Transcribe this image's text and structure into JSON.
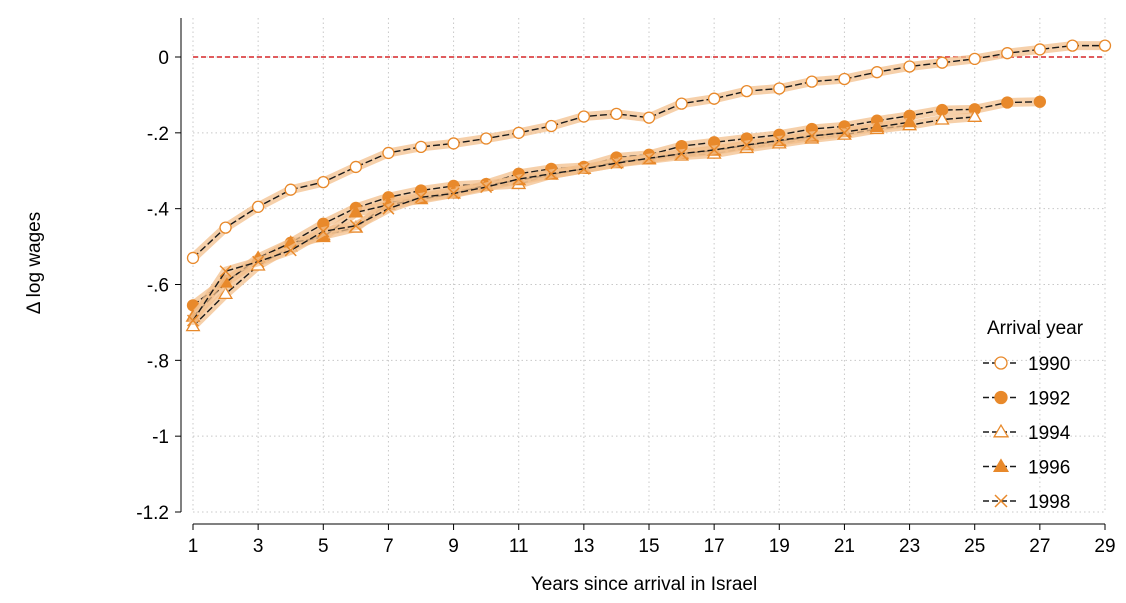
{
  "chart_data": {
    "type": "line",
    "title": "",
    "xlabel": "Years since arrival in Israel",
    "ylabel": "Δ log wages",
    "xlim": [
      1,
      29
    ],
    "ylim": [
      -1.2,
      0
    ],
    "x_ticks": [
      1,
      3,
      5,
      7,
      9,
      11,
      13,
      15,
      17,
      19,
      21,
      23,
      25,
      27,
      29
    ],
    "y_ticks": [
      0,
      -0.2,
      -0.4,
      -0.6,
      -0.8,
      -1,
      -1.2
    ],
    "y_tick_labels": [
      "0",
      "-.2",
      "-.4",
      "-.6",
      "-.8",
      "-1",
      "-1.2"
    ],
    "grid": true,
    "reference_line": {
      "y": 0,
      "color": "#d62728",
      "style": "dashed"
    },
    "legend": {
      "title": "Arrival year",
      "placement": "bottom-right"
    },
    "colors": {
      "accent": "#e8892b",
      "band": "#f3c08e",
      "line": "#1a1a1a",
      "grid": "#c8c8c8"
    },
    "series": [
      {
        "name": "1990",
        "marker": "circle-hollow",
        "x": [
          1,
          2,
          3,
          4,
          5,
          6,
          7,
          8,
          9,
          10,
          11,
          12,
          13,
          14,
          15,
          16,
          17,
          18,
          19,
          20,
          21,
          22,
          23,
          24,
          25,
          26,
          27,
          28,
          29
        ],
        "y": [
          -0.53,
          -0.45,
          -0.395,
          -0.35,
          -0.33,
          -0.29,
          -0.253,
          -0.237,
          -0.228,
          -0.215,
          -0.2,
          -0.182,
          -0.157,
          -0.15,
          -0.16,
          -0.123,
          -0.11,
          -0.09,
          -0.083,
          -0.065,
          -0.058,
          -0.04,
          -0.025,
          -0.015,
          -0.005,
          0.01,
          0.02,
          0.03,
          0.03
        ]
      },
      {
        "name": "1992",
        "marker": "circle-filled",
        "x": [
          1,
          2,
          3,
          4,
          5,
          6,
          7,
          8,
          9,
          10,
          11,
          12,
          13,
          14,
          15,
          16,
          17,
          18,
          19,
          20,
          21,
          22,
          23,
          24,
          25,
          26,
          27
        ],
        "y": [
          -0.655,
          -0.59,
          -0.54,
          -0.49,
          -0.44,
          -0.398,
          -0.37,
          -0.352,
          -0.34,
          -0.335,
          -0.308,
          -0.295,
          -0.29,
          -0.265,
          -0.258,
          -0.235,
          -0.225,
          -0.215,
          -0.205,
          -0.19,
          -0.183,
          -0.168,
          -0.155,
          -0.14,
          -0.138,
          -0.12,
          -0.118
        ]
      },
      {
        "name": "1994",
        "marker": "triangle-hollow",
        "x": [
          1,
          2,
          3,
          4,
          5,
          6,
          7,
          8,
          9,
          10,
          11,
          12,
          13,
          14,
          15,
          16,
          17,
          18,
          19,
          20,
          21,
          22,
          23,
          24,
          25
        ],
        "y": [
          -0.71,
          -0.625,
          -0.55,
          -0.5,
          -0.47,
          -0.45,
          -0.385,
          -0.37,
          -0.355,
          -0.34,
          -0.335,
          -0.31,
          -0.295,
          -0.28,
          -0.27,
          -0.26,
          -0.255,
          -0.24,
          -0.228,
          -0.215,
          -0.205,
          -0.19,
          -0.18,
          -0.165,
          -0.158
        ]
      },
      {
        "name": "1996",
        "marker": "triangle-filled",
        "x": [
          1,
          2,
          3,
          4,
          5,
          6,
          7,
          8,
          9,
          10,
          11,
          12,
          13,
          14,
          15,
          16,
          17,
          18,
          19,
          20,
          21,
          22,
          23
        ],
        "y": [
          -0.685,
          -0.595,
          -0.53,
          -0.49,
          -0.475,
          -0.41,
          -0.39,
          -0.375,
          -0.36,
          -0.338,
          -0.325,
          -0.31,
          -0.295,
          -0.277,
          -0.268,
          -0.255,
          -0.247,
          -0.233,
          -0.222,
          -0.21,
          -0.198,
          -0.185,
          -0.172
        ]
      },
      {
        "name": "1998",
        "marker": "x",
        "x": [
          1,
          2,
          3,
          4,
          5,
          6,
          7,
          8,
          9,
          10,
          11,
          12,
          13,
          14,
          15,
          16,
          17,
          18,
          19,
          20,
          21
        ],
        "y": [
          -0.695,
          -0.565,
          -0.54,
          -0.51,
          -0.46,
          -0.445,
          -0.4,
          -0.37,
          -0.36,
          -0.343,
          -0.322,
          -0.308,
          -0.295,
          -0.28,
          -0.267,
          -0.255,
          -0.245,
          -0.232,
          -0.22,
          -0.208,
          -0.2
        ]
      }
    ]
  }
}
